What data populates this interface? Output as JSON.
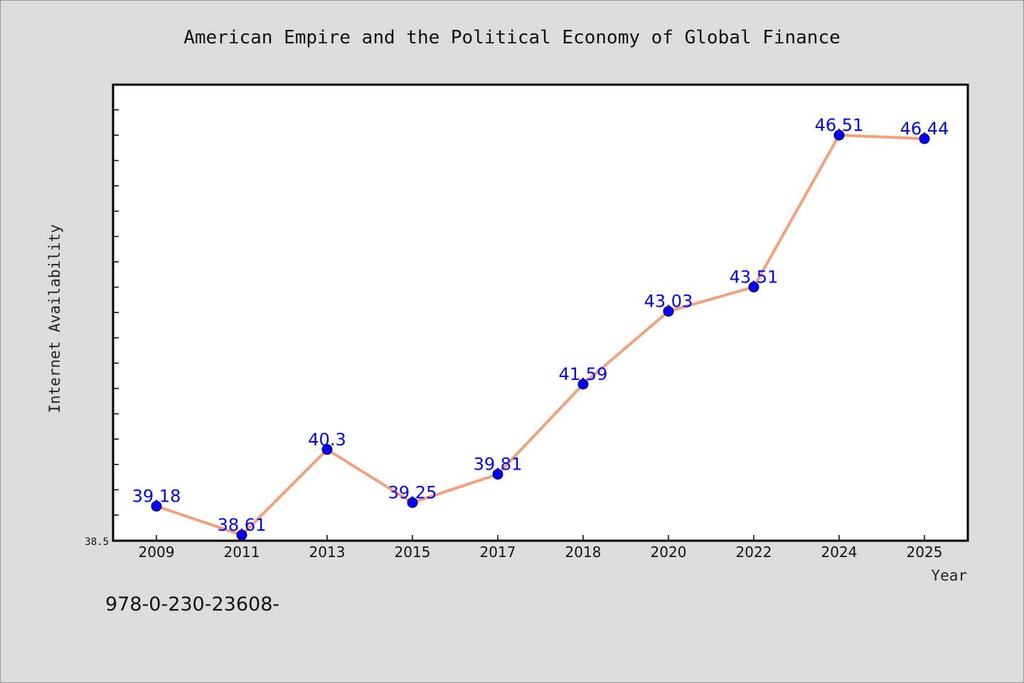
{
  "chart_data": {
    "type": "line",
    "title": "American Empire and the Political Economy of Global Finance",
    "xlabel": "Year",
    "ylabel": "Internet Availability",
    "categories": [
      "2009",
      "2011",
      "2013",
      "2015",
      "2017",
      "2018",
      "2020",
      "2022",
      "2024",
      "2025"
    ],
    "series": [
      {
        "values": [
          39.18,
          38.61,
          40.3,
          39.25,
          39.81,
          41.59,
          43.03,
          43.51,
          46.51,
          46.44
        ]
      }
    ],
    "data_labels": [
      "39.18",
      "38.61",
      "40.3",
      "39.25",
      "39.81",
      "41.59",
      "43.03",
      "43.51",
      "46.51",
      "46.44"
    ],
    "ytick_labels": [
      "38.5"
    ],
    "ylim": [
      38.5,
      47.5
    ],
    "grid": false,
    "line_color": "#f4a07a",
    "marker_color": "#0000ff",
    "label_color": "#0000ff",
    "background_color": "#dcdcdc",
    "plot_background_color": "#ffffff"
  },
  "footer": {
    "text": "978-0-230-23608-"
  }
}
